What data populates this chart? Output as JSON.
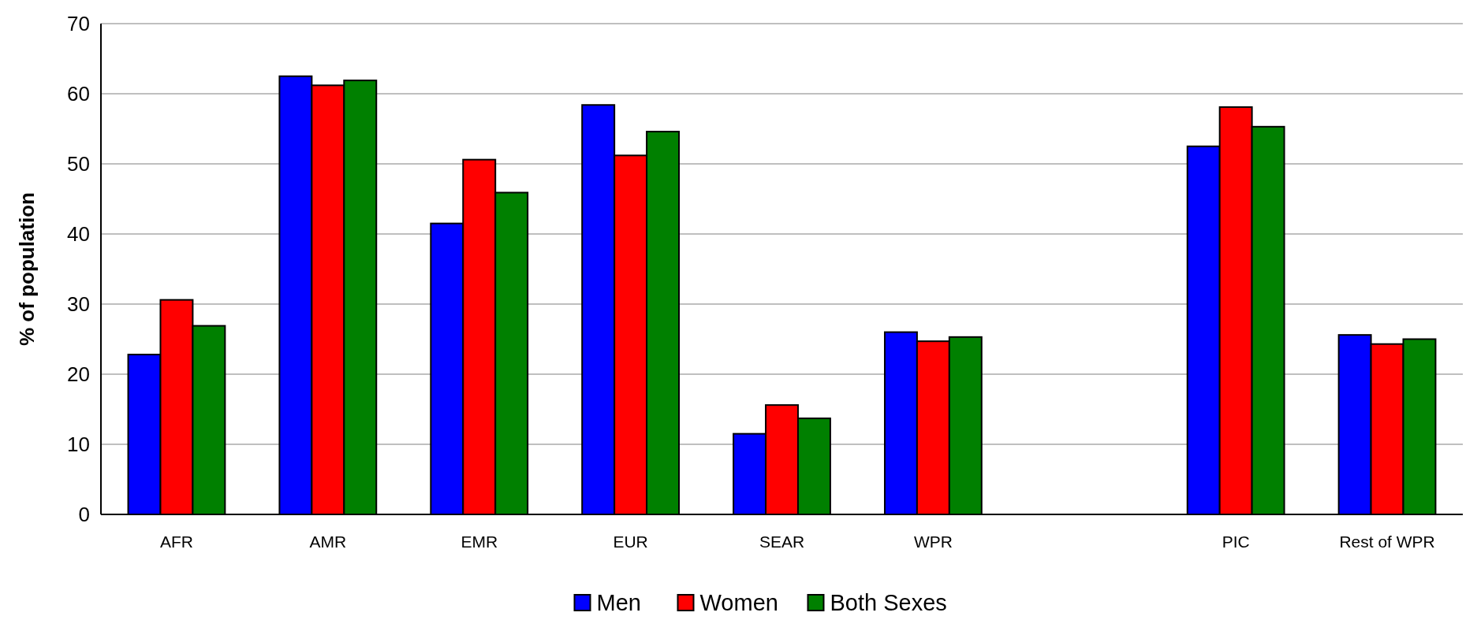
{
  "chart_data": {
    "type": "bar",
    "ylabel": "% of population",
    "categories": [
      "AFR",
      "AMR",
      "EMR",
      "EUR",
      "SEAR",
      "WPR",
      null,
      "PIC",
      "Rest of WPR"
    ],
    "series": [
      {
        "name": "Men",
        "color": "#0000ff",
        "values": [
          22.8,
          62.5,
          41.5,
          58.4,
          11.5,
          26.0,
          null,
          52.5,
          25.6
        ]
      },
      {
        "name": "Women",
        "color": "#ff0000",
        "values": [
          30.6,
          61.2,
          50.6,
          51.2,
          15.6,
          24.7,
          null,
          58.1,
          24.3
        ]
      },
      {
        "name": "Both Sexes",
        "color": "#008000",
        "values": [
          26.9,
          61.9,
          45.9,
          54.6,
          13.7,
          25.3,
          null,
          55.3,
          25.0
        ]
      }
    ],
    "ylim": [
      0,
      70
    ],
    "yticks": [
      0,
      10,
      20,
      30,
      40,
      50,
      60,
      70
    ],
    "grid": "y",
    "legend": "bottom"
  }
}
